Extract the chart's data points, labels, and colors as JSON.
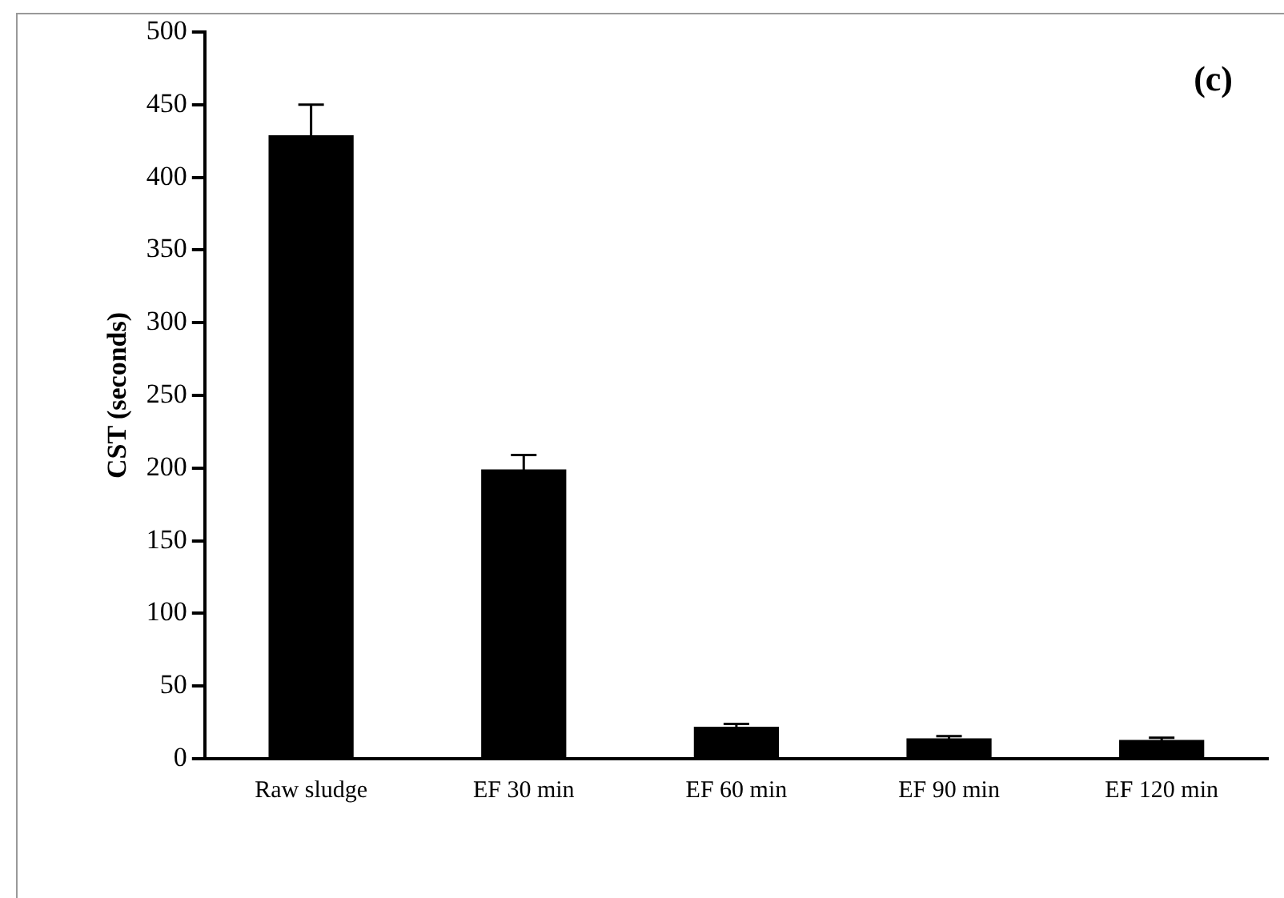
{
  "chart_data": {
    "type": "bar",
    "ylabel": "CST (seconds)",
    "annotations": [
      "(c)"
    ],
    "categories": [
      "Raw sludge",
      "EF 30 min",
      "EF 60 min",
      "EF 90 min",
      "EF 120 min"
    ],
    "values": [
      429,
      199,
      22,
      14,
      13
    ],
    "errors": [
      21,
      10,
      2,
      1.5,
      1.5
    ],
    "color": "#000000",
    "ylim": [
      0,
      500
    ],
    "yticks": [
      0,
      50,
      100,
      150,
      200,
      250,
      300,
      350,
      400,
      450,
      500
    ],
    "grid": false,
    "legend": false
  }
}
